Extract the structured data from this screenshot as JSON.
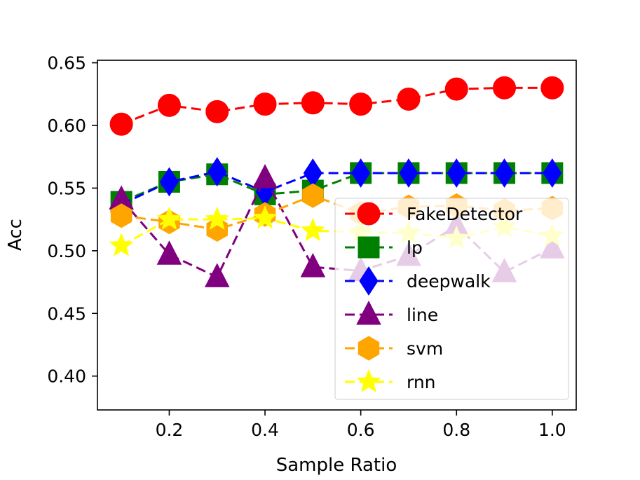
{
  "chart_data": {
    "type": "line",
    "title": "",
    "xlabel": "Sample Ratio",
    "ylabel": "Acc",
    "xlim": [
      0.05,
      1.05
    ],
    "ylim": [
      0.373,
      0.652
    ],
    "xticks": [
      0.2,
      0.4,
      0.6,
      0.8,
      1.0
    ],
    "xtick_labels": [
      "0.2",
      "0.4",
      "0.6",
      "0.8",
      "1.0"
    ],
    "yticks": [
      0.4,
      0.45,
      0.5,
      0.55,
      0.6,
      0.65
    ],
    "ytick_labels": [
      "0.40",
      "0.45",
      "0.50",
      "0.55",
      "0.60",
      "0.65"
    ],
    "grid": false,
    "legend_position": "lower-right",
    "x": [
      0.1,
      0.2,
      0.3,
      0.4,
      0.5,
      0.6,
      0.7,
      0.8,
      0.9,
      1.0
    ],
    "series": [
      {
        "name": "FakeDetector",
        "color": "#ff0000",
        "marker": "circle",
        "values": [
          0.601,
          0.616,
          0.611,
          0.617,
          0.618,
          0.617,
          0.621,
          0.629,
          0.63,
          0.63
        ]
      },
      {
        "name": "lp",
        "color": "#008000",
        "marker": "square",
        "values": [
          0.539,
          0.555,
          0.561,
          0.545,
          0.548,
          0.562,
          0.562,
          0.562,
          0.562,
          0.562
        ]
      },
      {
        "name": "deepwalk",
        "color": "#0000ff",
        "marker": "diamond",
        "values": [
          0.537,
          0.555,
          0.563,
          0.547,
          0.562,
          0.562,
          0.562,
          0.562,
          0.562,
          0.562
        ]
      },
      {
        "name": "line",
        "color": "#800080",
        "marker": "triangle",
        "values": [
          0.541,
          0.497,
          0.479,
          0.558,
          0.487,
          0.484,
          0.496,
          0.52,
          0.483,
          0.502
        ]
      },
      {
        "name": "svm",
        "color": "#ffa500",
        "marker": "hexagon",
        "values": [
          0.528,
          0.523,
          0.517,
          0.529,
          0.544,
          0.53,
          0.535,
          0.536,
          0.532,
          0.534
        ]
      },
      {
        "name": "rnn",
        "color": "#ffff00",
        "marker": "star",
        "values": [
          0.504,
          0.525,
          0.525,
          0.526,
          0.516,
          0.515,
          0.514,
          0.51,
          0.519,
          0.512
        ]
      }
    ]
  }
}
